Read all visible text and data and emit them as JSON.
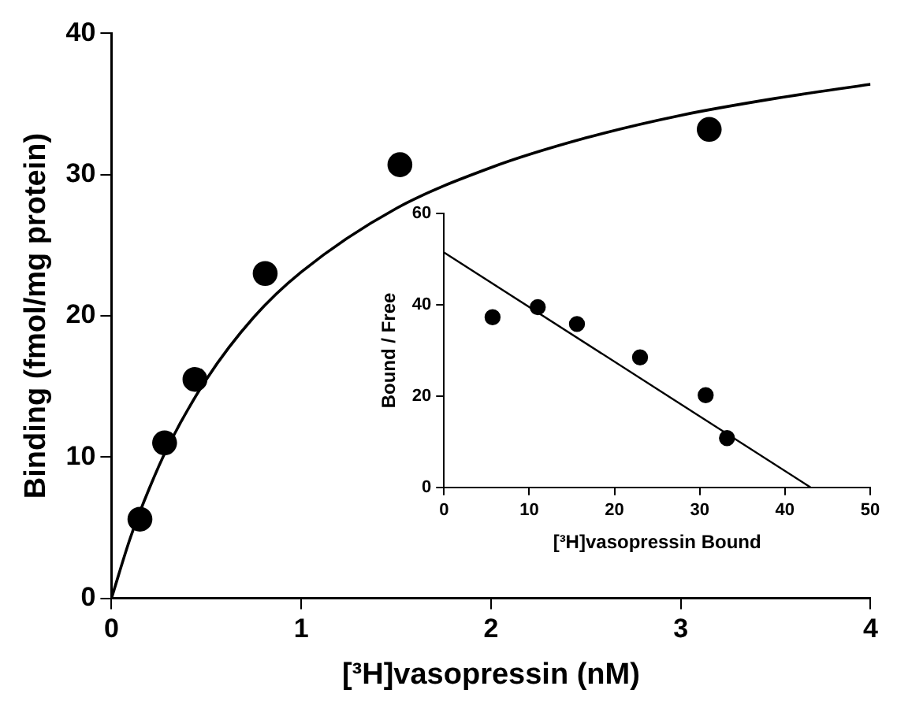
{
  "chart_data": [
    {
      "type": "scatter",
      "xlabel": "[³H]vasopressin (nM)",
      "ylabel": "Binding (fmol/mg protein)",
      "x": [
        0.15,
        0.28,
        0.44,
        0.81,
        1.52,
        3.15
      ],
      "xlim": [
        0,
        4
      ],
      "xticks": [
        0,
        1,
        2,
        3,
        4
      ],
      "ylim": [
        0,
        40
      ],
      "yticks": [
        0,
        10,
        20,
        30,
        40
      ],
      "grid": false,
      "legend": false,
      "marker": "circle",
      "series": [
        {
          "color": "#000000",
          "values": [
            5.6,
            11,
            15.5,
            23,
            30.7,
            33.2
          ]
        },
        {
          "type": "line",
          "color": "#000000",
          "marker": "none",
          "x": [
            0,
            0.1,
            0.2,
            0.3,
            0.5,
            0.75,
            1,
            1.5,
            2,
            2.5,
            3,
            3.5,
            4
          ],
          "values": [
            0,
            4.3,
            7.8,
            10.8,
            15.5,
            19.9,
            23.1,
            27.6,
            30.5,
            32.6,
            34.2,
            35.4,
            36.4
          ]
        }
      ]
    },
    {
      "type": "scatter",
      "xlabel": "[³H]vasopressin Bound",
      "ylabel": "Bound / Free",
      "x": [
        5.7,
        11,
        15.6,
        23,
        30.7,
        33.2
      ],
      "xlim": [
        0,
        50
      ],
      "xticks": [
        0,
        10,
        20,
        30,
        40,
        50
      ],
      "ylim": [
        0,
        60
      ],
      "yticks": [
        0,
        20,
        40,
        60
      ],
      "grid": false,
      "legend": false,
      "marker": "circle",
      "series": [
        {
          "color": "#000000",
          "values": [
            37.3,
            39.5,
            35.8,
            28.5,
            20.2,
            10.8
          ]
        },
        {
          "type": "line",
          "color": "#000000",
          "marker": "none",
          "x": [
            0,
            43
          ],
          "values": [
            51.5,
            0
          ]
        }
      ]
    }
  ]
}
